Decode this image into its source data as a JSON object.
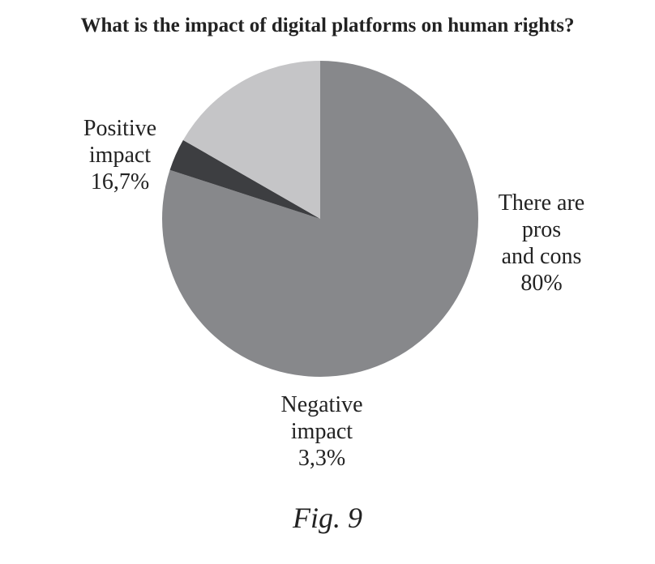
{
  "chart_data": {
    "type": "pie",
    "title": "What is the impact of digital platforms on human rights?",
    "caption": "Fig. 9",
    "slices": [
      {
        "label_lines": [
          "There are",
          "pros",
          "and cons"
        ],
        "label": "There are pros and cons",
        "value": 80,
        "value_text": "80%",
        "color": "#87888b"
      },
      {
        "label_lines": [
          "Negative",
          "impact"
        ],
        "label": "Negative impact",
        "value": 3.3,
        "value_text": "3,3%",
        "color": "#3d3e41"
      },
      {
        "label_lines": [
          "Positive",
          "impact"
        ],
        "label": "Positive impact",
        "value": 16.7,
        "value_text": "16,7%",
        "color": "#c5c5c7"
      }
    ]
  }
}
